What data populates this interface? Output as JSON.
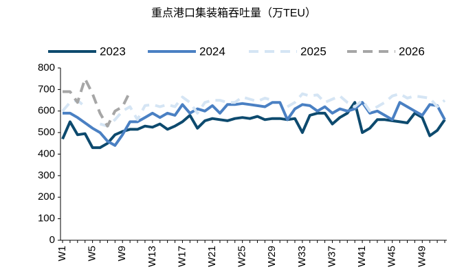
{
  "chart_data": {
    "type": "line",
    "title": "重点港口集装箱吞吐量（万TEU）",
    "categories": [
      "W1",
      null,
      null,
      null,
      "W5",
      null,
      null,
      null,
      "W9",
      null,
      null,
      null,
      "W13",
      null,
      null,
      null,
      "W17",
      null,
      null,
      null,
      "W21",
      null,
      null,
      null,
      "W25",
      null,
      null,
      null,
      "W29",
      null,
      null,
      null,
      "W33",
      null,
      null,
      null,
      "W37",
      null,
      null,
      null,
      "W41",
      null,
      null,
      null,
      "W45",
      null,
      null,
      null,
      "W49",
      null,
      null,
      null
    ],
    "series": [
      {
        "name": "2023",
        "color": "#0d4a6e",
        "dash": false,
        "values": [
          470,
          550,
          490,
          495,
          430,
          430,
          450,
          490,
          505,
          515,
          515,
          530,
          525,
          540,
          515,
          530,
          550,
          580,
          520,
          555,
          565,
          560,
          555,
          565,
          570,
          565,
          575,
          560,
          565,
          565,
          560,
          565,
          500,
          580,
          590,
          590,
          540,
          570,
          590,
          640,
          500,
          520,
          560,
          560,
          555,
          550,
          545,
          590,
          570,
          485,
          510,
          560
        ]
      },
      {
        "name": "2024",
        "color": "#4a80c3",
        "dash": false,
        "values": [
          590,
          590,
          570,
          545,
          520,
          500,
          460,
          440,
          490,
          550,
          550,
          570,
          590,
          570,
          590,
          580,
          630,
          590,
          610,
          600,
          625,
          590,
          630,
          630,
          635,
          630,
          625,
          620,
          640,
          640,
          560,
          610,
          630,
          625,
          600,
          620,
          590,
          610,
          600,
          610,
          640,
          590,
          600,
          580,
          560,
          640,
          620,
          600,
          580,
          630,
          625,
          560
        ]
      },
      {
        "name": "2025",
        "color": "#d5e5f4",
        "dash": true,
        "values": [
          600,
          640,
          650,
          620,
          null,
          540,
          530,
          560,
          600,
          620,
          560,
          625,
          630,
          620,
          630,
          620,
          665,
          640,
          590,
          640,
          650,
          650,
          640,
          640,
          665,
          655,
          645,
          660,
          650,
          null,
          620,
          640,
          680,
          670,
          675,
          640,
          655,
          670,
          640,
          620,
          650,
          600,
          620,
          640,
          670,
          680,
          660,
          670,
          665,
          660,
          620,
          650
        ]
      },
      {
        "name": "2026",
        "color": "#a6a6a6",
        "dash": true,
        "values": [
          690,
          690,
          640,
          750,
          680,
          590,
          530,
          600,
          620,
          690,
          null,
          null,
          null,
          null,
          null,
          null,
          null,
          null,
          null,
          null,
          null,
          null,
          null,
          null,
          null,
          null,
          null,
          null,
          null,
          null,
          null,
          null,
          null,
          null,
          null,
          null,
          null,
          null,
          null,
          null,
          null,
          null,
          null,
          null,
          null,
          null,
          null,
          null,
          null,
          null,
          null,
          null
        ]
      }
    ],
    "ylim": [
      0,
      800
    ],
    "yticks": [
      0,
      100,
      200,
      300,
      400,
      500,
      600,
      700,
      800
    ]
  }
}
